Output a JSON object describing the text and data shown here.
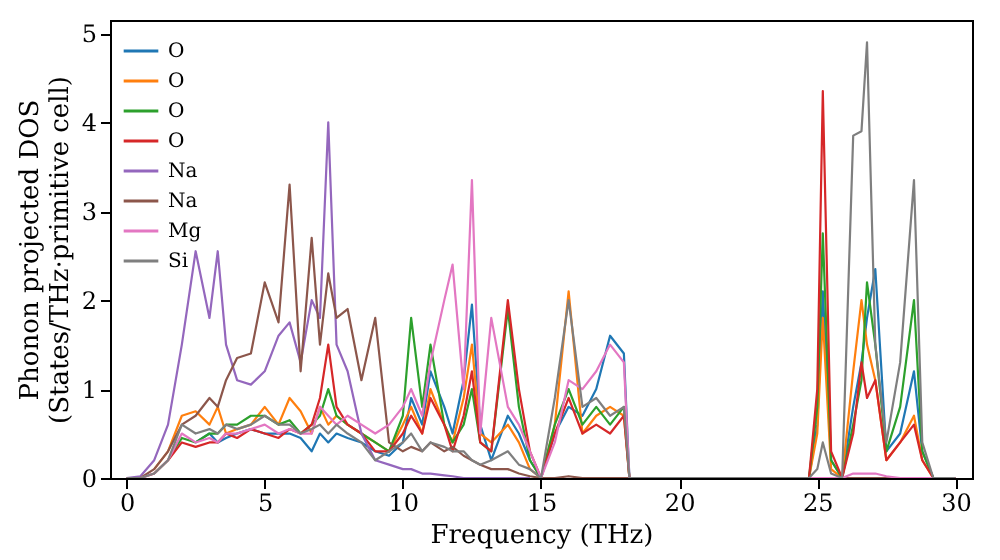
{
  "chart_data": {
    "type": "line",
    "xlabel": "Frequency (THz)",
    "ylabel": "Phonon projected DOS\n(States/THz·primitive cell)",
    "x": [
      0,
      0.5,
      1,
      1.5,
      2,
      2.5,
      3,
      3.3,
      3.6,
      4,
      4.5,
      5,
      5.5,
      5.9,
      6.3,
      6.7,
      7,
      7.3,
      7.6,
      8,
      8.5,
      9,
      9.5,
      10,
      10.3,
      10.7,
      11,
      11.5,
      11.8,
      12.2,
      12.5,
      12.8,
      13.2,
      13.8,
      14.2,
      14.6,
      15,
      15.5,
      16,
      16.5,
      17,
      17.5,
      18,
      18.2,
      18.5,
      24.7,
      25,
      25.2,
      25.5,
      25.9,
      26.3,
      26.6,
      26.8,
      27.1,
      27.5,
      28,
      28.5,
      28.8,
      29.2,
      30
    ],
    "series": [
      {
        "name": "O",
        "color": "#1f77b4",
        "values": [
          null,
          null,
          null,
          null,
          null,
          0.4,
          0.5,
          0.4,
          0.45,
          0.5,
          0.55,
          0.5,
          0.5,
          0.5,
          0.45,
          0.3,
          0.5,
          0.4,
          0.5,
          0.45,
          0.4,
          0.3,
          0.25,
          0.4,
          0.9,
          0.6,
          1.2,
          0.8,
          0.5,
          1.1,
          1.95,
          0.6,
          0.2,
          0.7,
          0.5,
          0.2,
          0,
          0.5,
          0.8,
          0.7,
          1.0,
          1.6,
          1.4,
          0,
          0,
          0,
          0.6,
          2.1,
          0.2,
          0,
          0.8,
          1.3,
          1.8,
          2.35,
          0.3,
          0.5,
          1.2,
          0.3,
          0,
          0
        ]
      },
      {
        "name": "O",
        "color": "#ff7f0e",
        "values": [
          null,
          null,
          0.1,
          0.3,
          0.7,
          0.75,
          0.6,
          0.8,
          0.5,
          0.55,
          0.6,
          0.8,
          0.6,
          0.9,
          0.75,
          0.5,
          0.8,
          0.6,
          0.7,
          0.6,
          0.5,
          0.4,
          0.3,
          0.6,
          0.8,
          0.5,
          1.0,
          0.6,
          0.4,
          0.9,
          1.5,
          0.5,
          0.4,
          0.6,
          0.4,
          0.1,
          0,
          0.6,
          2.1,
          0.5,
          0.7,
          0.8,
          0.7,
          0,
          0,
          0,
          0.5,
          1.8,
          0.1,
          0,
          1.2,
          2.0,
          1.5,
          1.1,
          0.2,
          0.4,
          0.7,
          0.2,
          0,
          0
        ]
      },
      {
        "name": "O",
        "color": "#2ca02c",
        "values": [
          null,
          null,
          0.05,
          0.2,
          0.45,
          0.4,
          0.5,
          0.5,
          0.6,
          0.6,
          0.7,
          0.7,
          0.6,
          0.65,
          0.5,
          0.6,
          0.7,
          1.0,
          0.7,
          0.6,
          0.5,
          0.4,
          0.3,
          0.7,
          1.8,
          0.8,
          1.5,
          0.6,
          0.4,
          0.6,
          1.0,
          0.4,
          0.3,
          1.9,
          0.8,
          0.2,
          0,
          0.6,
          1.0,
          0.6,
          0.8,
          0.6,
          0.8,
          0,
          0,
          0,
          0.8,
          2.75,
          0.2,
          0,
          0.6,
          1.1,
          2.2,
          1.5,
          0.3,
          0.8,
          2.0,
          0.3,
          0,
          0
        ]
      },
      {
        "name": "O",
        "color": "#d62728",
        "values": [
          0,
          0,
          0.05,
          0.2,
          0.4,
          0.35,
          0.4,
          0.4,
          0.5,
          0.45,
          0.55,
          0.5,
          0.45,
          0.55,
          0.5,
          0.6,
          0.9,
          1.5,
          0.8,
          0.6,
          0.5,
          0.3,
          0.3,
          0.5,
          0.7,
          0.5,
          0.9,
          0.6,
          0.3,
          0.7,
          1.2,
          0.4,
          0.3,
          2.0,
          1.0,
          0.3,
          0,
          0.5,
          0.9,
          0.5,
          0.6,
          0.5,
          0.7,
          0,
          0,
          0,
          1.0,
          4.35,
          0.3,
          0,
          0.5,
          1.3,
          0.9,
          1.1,
          0.2,
          0.4,
          0.6,
          0.2,
          0,
          0
        ]
      },
      {
        "name": "Na",
        "color": "#9467bd",
        "values": [
          0,
          0.02,
          0.2,
          0.6,
          1.5,
          2.55,
          1.8,
          2.55,
          1.5,
          1.1,
          1.05,
          1.2,
          1.6,
          1.75,
          1.3,
          2.0,
          1.8,
          4.0,
          1.5,
          1.2,
          0.5,
          0.2,
          0.15,
          0.1,
          0.1,
          0.05,
          0.05,
          0.03,
          0.02,
          0,
          0,
          0,
          0,
          0,
          0,
          0,
          null,
          null,
          null,
          null,
          null,
          null,
          null,
          null,
          null,
          null,
          null,
          null,
          null,
          null,
          null,
          null,
          null,
          null,
          null,
          null,
          null,
          null,
          null,
          null
        ]
      },
      {
        "name": "Na",
        "color": "#8c564b",
        "values": [
          0,
          0,
          0.1,
          0.3,
          0.6,
          0.7,
          0.9,
          0.8,
          1.1,
          1.35,
          1.4,
          2.2,
          1.75,
          3.3,
          1.2,
          2.7,
          1.5,
          2.3,
          1.8,
          1.9,
          1.1,
          1.8,
          0.4,
          0.3,
          0.35,
          0.3,
          0.4,
          0.3,
          0.35,
          0.25,
          0.2,
          0.15,
          0.1,
          0.1,
          0.05,
          0.02,
          0,
          0,
          0.02,
          0,
          0,
          0,
          0,
          0,
          0,
          0,
          0,
          0,
          0,
          0,
          0,
          0,
          0,
          0,
          0,
          0,
          0,
          0,
          0,
          0
        ]
      },
      {
        "name": "Mg",
        "color": "#e377c2",
        "values": [
          0,
          0,
          0.05,
          0.2,
          0.5,
          0.4,
          0.45,
          0.4,
          0.5,
          0.5,
          0.55,
          0.6,
          0.5,
          0.55,
          0.5,
          0.5,
          0.8,
          0.7,
          0.6,
          0.7,
          0.6,
          0.5,
          0.6,
          0.8,
          1.0,
          0.7,
          1.3,
          2.0,
          2.4,
          1.0,
          3.35,
          0.5,
          1.8,
          0.8,
          0.6,
          0.3,
          0,
          0.4,
          1.1,
          1.0,
          1.2,
          1.5,
          1.3,
          0,
          0,
          0,
          0,
          0,
          0,
          0,
          0.05,
          0.05,
          0.05,
          0.05,
          0.02,
          0,
          0,
          0,
          0,
          0
        ]
      },
      {
        "name": "Si",
        "color": "#7f7f7f",
        "values": [
          0,
          0,
          0.05,
          0.2,
          0.6,
          0.5,
          0.55,
          0.5,
          0.6,
          0.55,
          0.6,
          0.7,
          0.6,
          0.6,
          0.5,
          0.55,
          0.6,
          0.5,
          0.6,
          0.5,
          0.4,
          0.2,
          0.3,
          0.4,
          0.5,
          0.3,
          0.4,
          0.35,
          0.3,
          0.3,
          0.2,
          0.15,
          0.2,
          0.3,
          0.15,
          0.1,
          0,
          0.9,
          2.0,
          0.8,
          0.9,
          0.7,
          0.8,
          0,
          0,
          0,
          0.1,
          0.4,
          0.05,
          0,
          3.85,
          3.9,
          4.9,
          1.5,
          0.4,
          1.3,
          3.35,
          0.4,
          0,
          0
        ]
      }
    ],
    "xlim": [
      -0.6,
      30.6
    ],
    "ylim": [
      0,
      5.15
    ],
    "xticks": [
      0,
      5,
      10,
      15,
      20,
      25,
      30
    ],
    "yticks": [
      0,
      1,
      2,
      3,
      4,
      5
    ],
    "legend": "top left",
    "grid": false
  }
}
